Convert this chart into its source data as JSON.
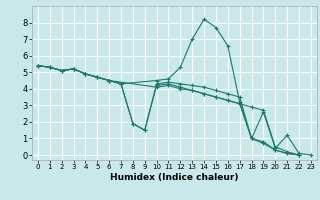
{
  "xlabel": "Humidex (Indice chaleur)",
  "bg_color": "#c8e8ea",
  "grid_color": "#ffffff",
  "line_color": "#1a7a6e",
  "xlim": [
    -0.5,
    23.5
  ],
  "ylim": [
    -0.3,
    9.0
  ],
  "xticks": [
    0,
    1,
    2,
    3,
    4,
    5,
    6,
    7,
    8,
    9,
    10,
    11,
    12,
    13,
    14,
    15,
    16,
    17,
    18,
    19,
    20,
    21,
    22,
    23
  ],
  "yticks": [
    0,
    1,
    2,
    3,
    4,
    5,
    6,
    7,
    8
  ],
  "series": [
    {
      "x": [
        0,
        1,
        2,
        3,
        4,
        5,
        6,
        7,
        10,
        11,
        12,
        13,
        14,
        15,
        16,
        17,
        18,
        19,
        20,
        21,
        22,
        23
      ],
      "y": [
        5.4,
        5.3,
        5.1,
        5.2,
        4.9,
        4.7,
        4.5,
        4.3,
        4.5,
        4.6,
        5.3,
        7.0,
        8.2,
        7.7,
        6.6,
        3.2,
        1.0,
        2.6,
        0.4,
        1.2,
        0.1,
        0.0
      ]
    },
    {
      "x": [
        0,
        1,
        2,
        3,
        4,
        5,
        6,
        7,
        8,
        9,
        10,
        11,
        12,
        13,
        14,
        15,
        16,
        17,
        18,
        19,
        20,
        21,
        22
      ],
      "y": [
        5.4,
        5.3,
        5.1,
        5.2,
        4.9,
        4.7,
        4.5,
        4.3,
        1.9,
        1.5,
        4.3,
        4.4,
        4.3,
        4.2,
        4.1,
        3.9,
        3.7,
        3.5,
        1.0,
        0.8,
        0.3,
        0.1,
        0.0
      ]
    },
    {
      "x": [
        0,
        1,
        2,
        3,
        4,
        5,
        6,
        7,
        8,
        9,
        10,
        11,
        12,
        13,
        14,
        15,
        16,
        17,
        18,
        19,
        20,
        21,
        22
      ],
      "y": [
        5.4,
        5.3,
        5.1,
        5.2,
        4.9,
        4.7,
        4.5,
        4.3,
        1.9,
        1.5,
        4.2,
        4.3,
        4.1,
        3.9,
        3.7,
        3.5,
        3.3,
        3.1,
        1.0,
        0.7,
        0.3,
        0.1,
        0.0
      ]
    },
    {
      "x": [
        0,
        1,
        2,
        3,
        4,
        5,
        6,
        10,
        11,
        12,
        13,
        14,
        15,
        16,
        17,
        18,
        19,
        20,
        21,
        22
      ],
      "y": [
        5.4,
        5.3,
        5.1,
        5.2,
        4.9,
        4.7,
        4.5,
        4.1,
        4.2,
        4.0,
        3.9,
        3.7,
        3.5,
        3.3,
        3.1,
        2.9,
        2.7,
        0.5,
        0.2,
        0.0
      ]
    }
  ]
}
